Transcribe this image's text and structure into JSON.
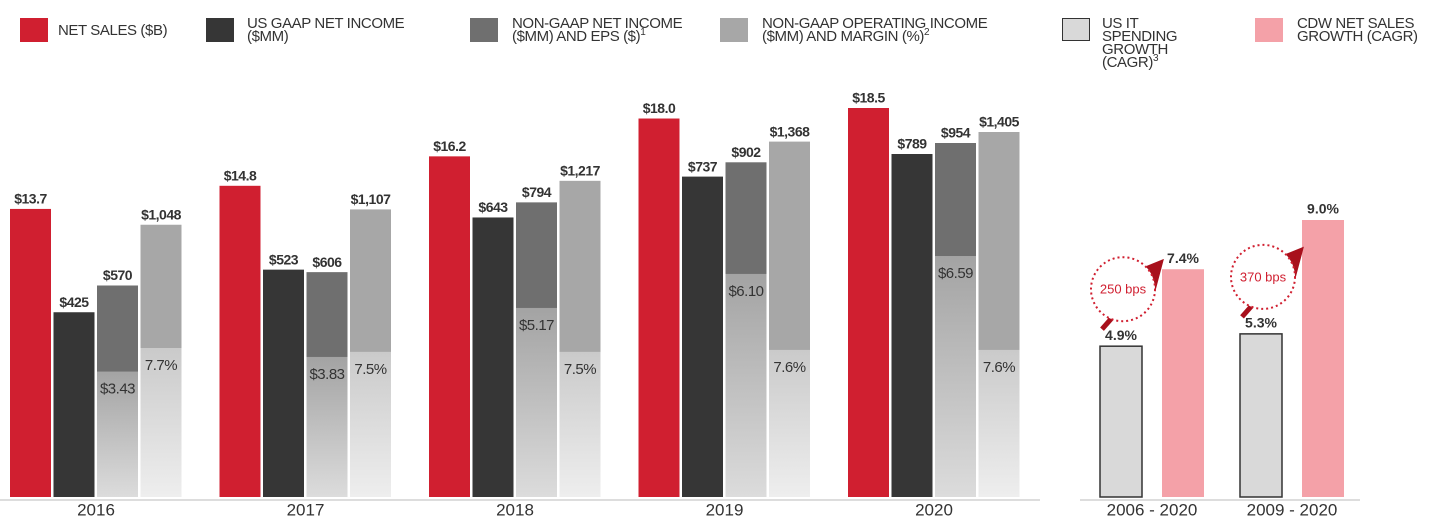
{
  "chart_data": [
    {
      "type": "bar",
      "categories": [
        "2016",
        "2017",
        "2018",
        "2019",
        "2020"
      ],
      "series": [
        {
          "name": "NET SALES ($B)",
          "color": "#d01f30",
          "values": [
            13.7,
            14.8,
            16.2,
            18.0,
            18.5
          ],
          "value_labels": [
            "$13.7",
            "$14.8",
            "$16.2",
            "$18.0",
            "$18.5"
          ]
        },
        {
          "name": "US GAAP NET INCOME ($MM)",
          "color": "#363636",
          "values": [
            425,
            523,
            643,
            737,
            789
          ],
          "value_labels": [
            "$425",
            "$523",
            "$643",
            "$737",
            "$789"
          ]
        },
        {
          "name": "NON-GAAP NET INCOME ($MM) AND EPS ($)",
          "note": "1",
          "color": "#6f6f6f",
          "values": [
            570,
            606,
            794,
            902,
            954
          ],
          "value_labels": [
            "$570",
            "$606",
            "$794",
            "$902",
            "$954"
          ],
          "inner_values": [
            3.43,
            3.83,
            5.17,
            6.1,
            6.59
          ],
          "inner_labels": [
            "$3.43",
            "$3.83",
            "$5.17",
            "$6.10",
            "$6.59"
          ]
        },
        {
          "name": "NON-GAAP OPERATING INCOME ($MM) AND MARGIN (%)",
          "note": "2",
          "color": "#a7a7a7",
          "values": [
            1048,
            1107,
            1217,
            1368,
            1405
          ],
          "value_labels": [
            "$1,048",
            "$1,107",
            "$1,217",
            "$1,368",
            "$1,405"
          ],
          "inner_values": [
            7.7,
            7.5,
            7.5,
            7.6,
            7.6
          ],
          "inner_labels": [
            "7.7%",
            "7.5%",
            "7.5%",
            "7.6%",
            "7.6%"
          ]
        }
      ]
    },
    {
      "type": "bar",
      "categories": [
        "2006 - 2020",
        "2009 - 2020"
      ],
      "series": [
        {
          "name": "US IT SPENDING GROWTH (CAGR)",
          "note": "3",
          "color": "#d9d9d9",
          "values": [
            4.9,
            5.3
          ],
          "value_labels": [
            "4.9%",
            "5.3%"
          ]
        },
        {
          "name": "CDW NET SALES GROWTH (CAGR)",
          "color": "#f4a1a8",
          "values": [
            7.4,
            9.0
          ],
          "value_labels": [
            "7.4%",
            "9.0%"
          ]
        }
      ],
      "annotations": [
        "250 bps",
        "370 bps"
      ]
    }
  ]
}
